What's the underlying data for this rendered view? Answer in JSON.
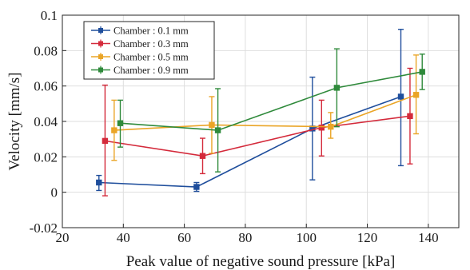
{
  "chart_data": {
    "type": "line",
    "title": "",
    "xlabel": "Peak value of negative sound pressure [kPa]",
    "ylabel": "Velocity [mm/s]",
    "xlim": [
      20,
      150
    ],
    "ylim": [
      -0.02,
      0.1
    ],
    "xticks": [
      20,
      40,
      60,
      80,
      100,
      120,
      140
    ],
    "yticks": [
      -0.02,
      0,
      0.02,
      0.04,
      0.06,
      0.08,
      0.1
    ],
    "xtick_labels": [
      "20",
      "40",
      "60",
      "80",
      "100",
      "120",
      "140"
    ],
    "ytick_labels": [
      "-0.02",
      "0",
      "0.02",
      "0.04",
      "0.06",
      "0.08",
      "0.1"
    ],
    "grid": true,
    "legend_position": "top-left",
    "series": [
      {
        "name": "Chamber : 0.1 mm",
        "color": "#1f4e9c",
        "x": [
          32,
          64,
          102,
          131
        ],
        "y": [
          0.0055,
          0.003,
          0.036,
          0.054
        ],
        "err_low": [
          0.001,
          0.0005,
          0.007,
          0.015
        ],
        "err_high": [
          0.0095,
          0.0055,
          0.065,
          0.092
        ]
      },
      {
        "name": "Chamber : 0.3 mm",
        "color": "#d42a3b",
        "x": [
          34,
          66,
          105,
          134
        ],
        "y": [
          0.029,
          0.0205,
          0.0365,
          0.043
        ],
        "err_low": [
          -0.002,
          0.0105,
          0.0205,
          0.016
        ],
        "err_high": [
          0.0605,
          0.0305,
          0.052,
          0.07
        ]
      },
      {
        "name": "Chamber : 0.5 mm",
        "color": "#eaa527",
        "x": [
          37,
          69,
          108,
          136
        ],
        "y": [
          0.035,
          0.038,
          0.037,
          0.055
        ],
        "err_low": [
          0.018,
          0.022,
          0.0305,
          0.033
        ],
        "err_high": [
          0.052,
          0.054,
          0.045,
          0.0775
        ]
      },
      {
        "name": "Chamber : 0.9 mm",
        "color": "#2f8a3b",
        "x": [
          39,
          71,
          110,
          138
        ],
        "y": [
          0.039,
          0.035,
          0.059,
          0.068
        ],
        "err_low": [
          0.0255,
          0.0115,
          0.037,
          0.058
        ],
        "err_high": [
          0.052,
          0.0585,
          0.081,
          0.078
        ]
      }
    ]
  }
}
